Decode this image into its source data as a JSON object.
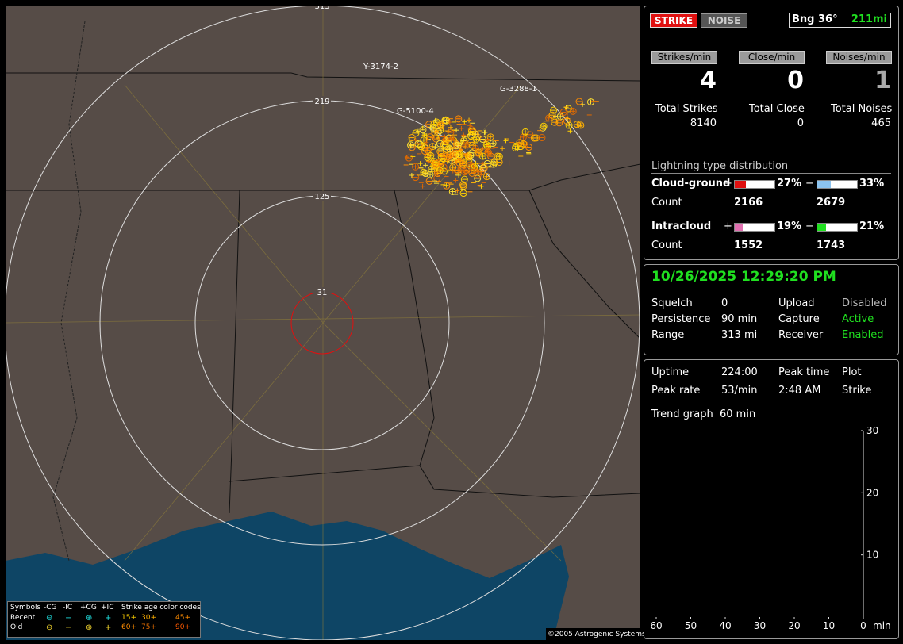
{
  "map": {
    "range_rings": [
      "313",
      "219",
      "125",
      "31"
    ],
    "strike_labels": [
      "Y-3174-2",
      "G-3288-1",
      "G-5100-4"
    ],
    "copyright": "©2005 Astrogenic Systems",
    "legend": {
      "symbols_title": "Symbols",
      "symbol_headers": [
        "-CG",
        "-IC",
        "+CG",
        "+IC"
      ],
      "age_title": "Strike age color codes",
      "rows": [
        {
          "label": "Recent",
          "symbols": [
            "⊖",
            "−",
            "⊕",
            "+"
          ],
          "ages": [
            "15+",
            "30+",
            "45+"
          ]
        },
        {
          "label": "Old",
          "symbols": [
            "⊖",
            "−",
            "⊕",
            "+"
          ],
          "ages": [
            "60+",
            "75+",
            "90+"
          ]
        }
      ]
    }
  },
  "status": {
    "buttons": [
      "STRIKE",
      "NOISE"
    ],
    "bearing": "Bng 36°",
    "distance": "211mi",
    "rates": [
      {
        "label": "Strikes/min",
        "value": 4
      },
      {
        "label": "Close/min",
        "value": 0
      },
      {
        "label": "Noises/min",
        "value": 1
      }
    ],
    "totals": [
      {
        "label": "Total Strikes",
        "value": 8140
      },
      {
        "label": "Total Close",
        "value": 0
      },
      {
        "label": "Total Noises",
        "value": 465
      }
    ],
    "distribution": {
      "title": "Lightning type distribution",
      "count_label": "Count",
      "rows": [
        {
          "name": "Cloud-ground",
          "positive": {
            "sign": "+",
            "percent": {
              "value": 27,
              "label": "27%"
            },
            "count": 2166,
            "color": "#e01010"
          },
          "negative": {
            "sign": "−",
            "percent": {
              "value": 33,
              "label": "33%"
            },
            "count": 2679,
            "color": "#8cc4f0"
          }
        },
        {
          "name": "Intracloud",
          "positive": {
            "sign": "+",
            "percent": {
              "value": 19,
              "label": "19%"
            },
            "count": 1552,
            "color": "#e070b0"
          },
          "negative": {
            "sign": "−",
            "percent": {
              "value": 21,
              "label": "21%"
            },
            "count": 1743,
            "color": "#20e020"
          }
        }
      ]
    }
  },
  "settings": {
    "datetime": "10/26/2025 12:29:20 PM",
    "rows": [
      [
        "Squelch",
        0,
        "Upload",
        "Disabled"
      ],
      [
        "Persistence",
        "90 min",
        "Capture",
        "Active"
      ],
      [
        "Range",
        "313 mi",
        "Receiver",
        "Enabled"
      ]
    ]
  },
  "trend": {
    "rows": [
      [
        "Uptime",
        "224:00",
        "Peak time",
        "Plot"
      ],
      [
        "Peak rate",
        "53/min",
        "2:48 AM",
        "Strike"
      ],
      [
        "Trend graph",
        "60 min"
      ]
    ],
    "ylim": [
      0,
      30
    ],
    "yticks": [
      10,
      20,
      30
    ],
    "xlim": [
      60,
      0
    ],
    "xticks": [
      60,
      50,
      40,
      30,
      20,
      10,
      0
    ],
    "x_unit": "min"
  }
}
